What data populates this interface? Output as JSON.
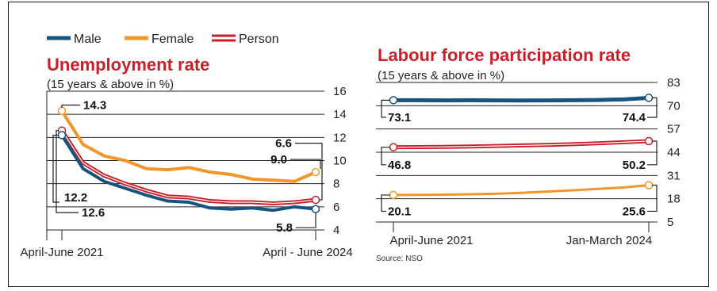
{
  "legend": [
    {
      "name": "Male",
      "color": "#17537f"
    },
    {
      "name": "Female",
      "color": "#f0962b"
    },
    {
      "name": "Person",
      "color": "#c8202a"
    }
  ],
  "source": "Source: NSO",
  "chart_data": [
    {
      "type": "line",
      "title": "Unemployment rate",
      "subtitle": "(15 years & above in %)",
      "xlabels": [
        "April-June 2021",
        "April - June 2024"
      ],
      "yticks": [
        4,
        6,
        8,
        10,
        12,
        14,
        16
      ],
      "ylim": [
        4,
        16
      ],
      "axis_side": "right",
      "grid": true,
      "series": [
        {
          "name": "Female",
          "color": "#f0962b",
          "values": [
            14.3,
            11.4,
            10.4,
            10.0,
            9.3,
            9.2,
            9.4,
            9.0,
            8.8,
            8.4,
            8.3,
            8.2,
            9.0
          ]
        },
        {
          "name": "Person",
          "color": "#c8202a",
          "values": [
            12.6,
            9.8,
            8.7,
            8.0,
            7.4,
            6.9,
            6.8,
            6.5,
            6.4,
            6.4,
            6.3,
            6.4,
            6.6
          ]
        },
        {
          "name": "Male",
          "color": "#17537f",
          "values": [
            12.2,
            9.3,
            8.2,
            7.6,
            7.0,
            6.5,
            6.4,
            5.9,
            5.8,
            5.9,
            5.7,
            6.0,
            5.8
          ]
        }
      ],
      "data_labels": {
        "female_start": "14.3",
        "male_start": "12.2",
        "person_start": "12.6",
        "person_end": "6.6",
        "female_end": "9.0",
        "male_end": "5.8"
      }
    },
    {
      "type": "line",
      "title": "Labour force participation rate",
      "subtitle": "(15 years & above in %)",
      "xlabels": [
        "April-June 2021",
        "Jan-March 2024"
      ],
      "yticks": [
        5,
        18,
        31,
        44,
        57,
        70,
        83
      ],
      "ylim": [
        5,
        83
      ],
      "axis_side": "right",
      "grid": true,
      "series": [
        {
          "name": "Male",
          "color": "#17537f",
          "values": [
            73.1,
            73.1,
            73.0,
            73.1,
            73.0,
            72.9,
            73.0,
            73.1,
            73.2,
            73.5,
            74.4
          ]
        },
        {
          "name": "Person",
          "color": "#c8202a",
          "values": [
            46.8,
            46.9,
            47.0,
            47.2,
            47.5,
            47.8,
            48.1,
            48.5,
            49.0,
            49.6,
            50.2
          ]
        },
        {
          "name": "Female",
          "color": "#f0962b",
          "values": [
            20.1,
            20.2,
            20.3,
            20.5,
            20.8,
            21.3,
            22.0,
            22.7,
            23.5,
            24.3,
            25.6
          ]
        }
      ],
      "data_labels": {
        "male_start": "73.1",
        "male_end": "74.4",
        "person_start": "46.8",
        "person_end": "50.2",
        "female_start": "20.1",
        "female_end": "25.6"
      }
    }
  ]
}
